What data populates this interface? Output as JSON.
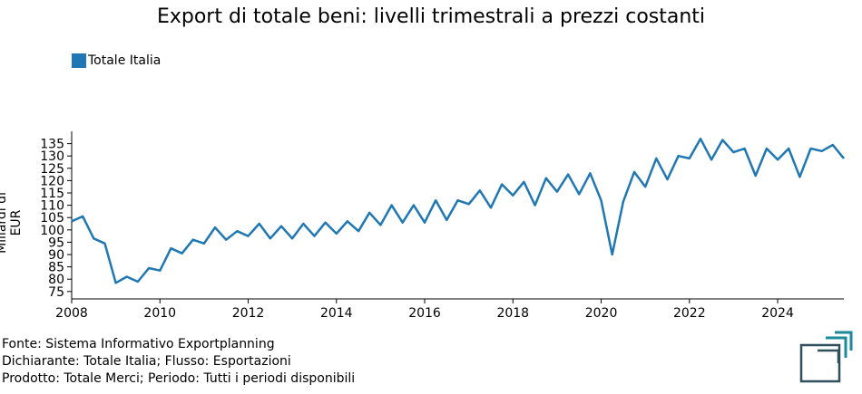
{
  "chart_data": {
    "type": "line",
    "title": "Export di totale beni: livelli trimestrali a prezzi costanti",
    "ylabel": "Miliardi di EUR",
    "xlabel": "",
    "legend_position": "top-left",
    "colors": {
      "series": "#1f77b4"
    },
    "xlim": [
      2008.0,
      2025.5
    ],
    "ylim": [
      72,
      140
    ],
    "x_ticks": [
      "2008",
      "2010",
      "2012",
      "2014",
      "2016",
      "2018",
      "2020",
      "2022",
      "2024"
    ],
    "y_ticks": [
      "75",
      "80",
      "85",
      "90",
      "95",
      "100",
      "105",
      "110",
      "115",
      "120",
      "125",
      "130",
      "135"
    ],
    "series": [
      {
        "name": "Totale Italia",
        "x": [
          2008.0,
          2008.25,
          2008.5,
          2008.75,
          2009.0,
          2009.25,
          2009.5,
          2009.75,
          2010.0,
          2010.25,
          2010.5,
          2010.75,
          2011.0,
          2011.25,
          2011.5,
          2011.75,
          2012.0,
          2012.25,
          2012.5,
          2012.75,
          2013.0,
          2013.25,
          2013.5,
          2013.75,
          2014.0,
          2014.25,
          2014.5,
          2014.75,
          2015.0,
          2015.25,
          2015.5,
          2015.75,
          2016.0,
          2016.25,
          2016.5,
          2016.75,
          2017.0,
          2017.25,
          2017.5,
          2017.75,
          2018.0,
          2018.25,
          2018.5,
          2018.75,
          2019.0,
          2019.25,
          2019.5,
          2019.75,
          2020.0,
          2020.25,
          2020.5,
          2020.75,
          2021.0,
          2021.25,
          2021.5,
          2021.75,
          2022.0,
          2022.25,
          2022.5,
          2022.75,
          2023.0,
          2023.25,
          2023.5,
          2023.75,
          2024.0,
          2024.25,
          2024.5,
          2024.75,
          2025.0,
          2025.25,
          2025.5
        ],
        "values": [
          103.5,
          105.5,
          96.5,
          94.5,
          78.5,
          81,
          79,
          84.5,
          83.5,
          92.5,
          90.5,
          96,
          94.5,
          101,
          96,
          99.5,
          97.5,
          102.5,
          96.5,
          101.5,
          96.5,
          102.5,
          97.5,
          103,
          98.5,
          103.5,
          99.5,
          107,
          102,
          110,
          103,
          110,
          103,
          112,
          104,
          112,
          110.5,
          116,
          109,
          118.5,
          114,
          119.5,
          110,
          121,
          115.5,
          122.5,
          114.5,
          123,
          112,
          90,
          111.5,
          123.5,
          117.5,
          129,
          120.5,
          130,
          129,
          137,
          128.5,
          136.5,
          131.5,
          133,
          122,
          133,
          128.5,
          133,
          121.5,
          133,
          132,
          134.5,
          129
        ]
      }
    ]
  },
  "footer": {
    "source": "Fonte: Sistema Informativo Exportplanning",
    "declarant": "Dichiarante: Totale Italia; Flusso: Esportazioni",
    "product": "Prodotto: Totale Merci; Periodo: Tutti i periodi disponibili"
  },
  "logo": {
    "icon": "exportplanning-logo-icon",
    "colors": [
      "#1a8a9c",
      "#2f4f5f"
    ]
  }
}
